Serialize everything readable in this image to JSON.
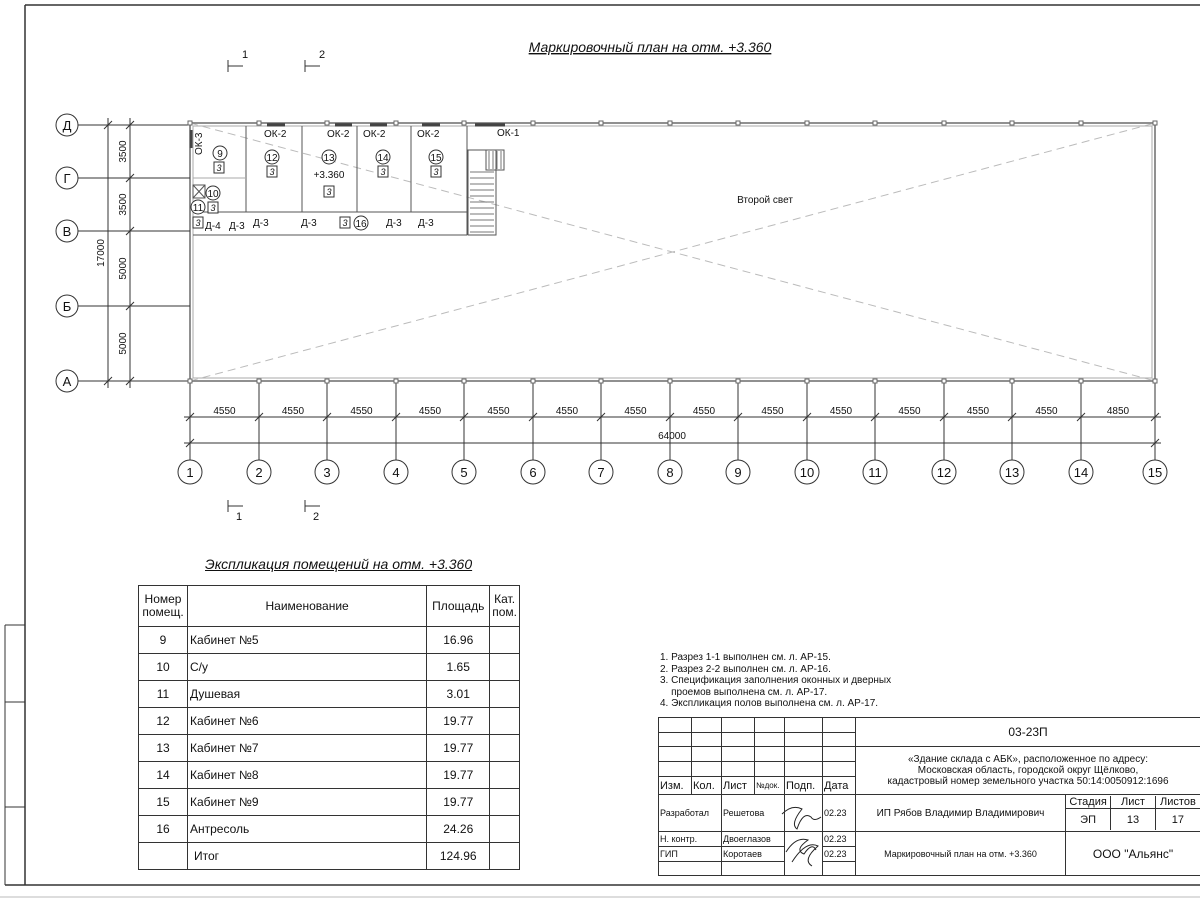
{
  "drawing": {
    "title": "Маркировочный план на отм. +3.360",
    "second_light_label": "Второй свет",
    "elevation_label": "+3.360",
    "row_axes": [
      {
        "label": "Д",
        "span_to_next": "3500"
      },
      {
        "label": "Г",
        "span_to_next": "3500"
      },
      {
        "label": "В",
        "span_to_next": "5000"
      },
      {
        "label": "Б",
        "span_to_next": "5000"
      },
      {
        "label": "А",
        "span_to_next": ""
      }
    ],
    "row_total": "17000",
    "column_axes": [
      "1",
      "2",
      "3",
      "4",
      "5",
      "6",
      "7",
      "8",
      "9",
      "10",
      "11",
      "12",
      "13",
      "14",
      "15"
    ],
    "column_spans": [
      "4550",
      "4550",
      "4550",
      "4550",
      "4550",
      "4550",
      "4550",
      "4550",
      "4550",
      "4550",
      "4550",
      "4550",
      "4550",
      "4850"
    ],
    "column_total": "64000",
    "section_marks": {
      "s1": "1",
      "s2": "2"
    },
    "windows": {
      "ok1": "ОК-1",
      "ok2": "ОК-2",
      "ok3": "ОК-3"
    },
    "doors": {
      "d3": "Д-3",
      "d4": "Д-4"
    },
    "rooms": [
      "9",
      "10",
      "11",
      "12",
      "13",
      "14",
      "15",
      "16"
    ],
    "category": "3"
  },
  "explication": {
    "title": "Экспликация помещений на отм. +3.360",
    "headers": {
      "num": "Номер помещ.",
      "name": "Наименование",
      "area": "Площадь",
      "cat": "Кат. пом."
    },
    "rows": [
      {
        "num": "9",
        "name": "Кабинет №5",
        "area": "16.96"
      },
      {
        "num": "10",
        "name": "С/у",
        "area": "1.65"
      },
      {
        "num": "11",
        "name": "Душевая",
        "area": "3.01"
      },
      {
        "num": "12",
        "name": "Кабинет №6",
        "area": "19.77"
      },
      {
        "num": "13",
        "name": "Кабинет №7",
        "area": "19.77"
      },
      {
        "num": "14",
        "name": "Кабинет №8",
        "area": "19.77"
      },
      {
        "num": "15",
        "name": "Кабинет №9",
        "area": "19.77"
      },
      {
        "num": "16",
        "name": "Антресоль",
        "area": "24.26"
      }
    ],
    "total": {
      "name": "Итог",
      "area": "124.96"
    }
  },
  "notes": [
    "1. Разрез 1-1 выполнен см. л. АР-15.",
    "2. Разрез 2-2 выполнен см. л. АР-16.",
    "3. Спецификация заполнения оконных и дверных",
    "    проемов выполнена см. л. АР-17.",
    "4. Экспликация полов выполнена см. л. АР-17."
  ],
  "title_block": {
    "code": "03-23П",
    "address": [
      "«Здание склада с АБК», расположенное по адресу:",
      "Московская область, городской округ Щёлково,",
      "кадастровый номер земельного участка 50:14:0050912:1696"
    ],
    "cols": {
      "izm": "Изм.",
      "kol": "Кол.",
      "list": "Лист",
      "ndok": "№док.",
      "podp": "Подп.",
      "data": "Дата"
    },
    "people": [
      {
        "role": "Разработал",
        "name": "Решетова",
        "date": "02.23"
      },
      {
        "role": "Н. контр.",
        "name": "Двоеглазов",
        "date": "02.23"
      },
      {
        "role": "ГИП",
        "name": "Коротаев",
        "date": "02.23"
      }
    ],
    "organization_person": "ИП Рябов Владимир Владимирович",
    "sheet_title": "Маркировочный план на отм. +3.360",
    "stage_label": "Стадия",
    "sheet_label": "Лист",
    "sheets_label": "Листов",
    "stage": "ЭП",
    "sheet": "13",
    "sheets": "17",
    "company": "ООО \"Альянс\""
  }
}
